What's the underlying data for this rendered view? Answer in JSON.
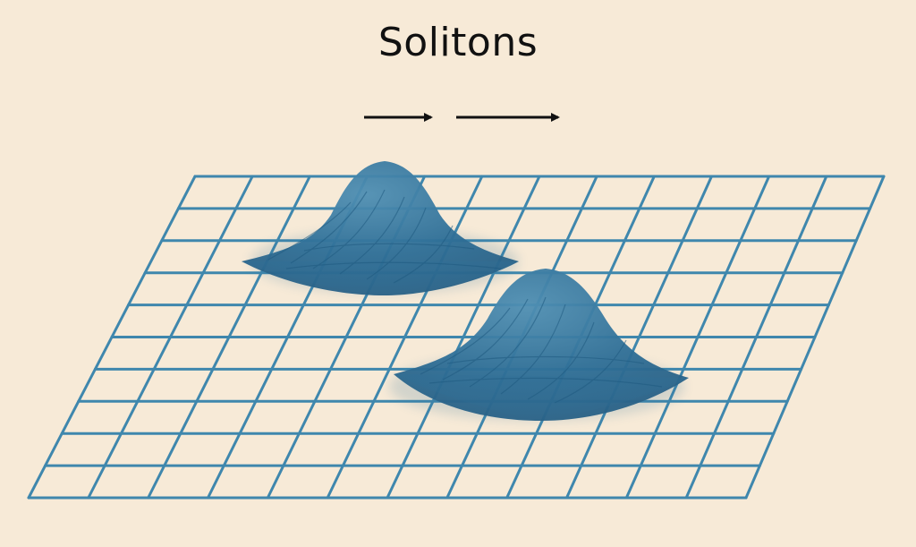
{
  "title": "Solitons",
  "colors": {
    "background": "#f7ead7",
    "grid": "#3f87ad",
    "soliton": "#2f6f97",
    "arrow": "#111111"
  },
  "arrows": [
    {
      "name": "short-arrow",
      "direction": "right"
    },
    {
      "name": "long-arrow",
      "direction": "right"
    }
  ],
  "solitons": [
    {
      "name": "soliton-wave-1"
    },
    {
      "name": "soliton-wave-2"
    }
  ]
}
